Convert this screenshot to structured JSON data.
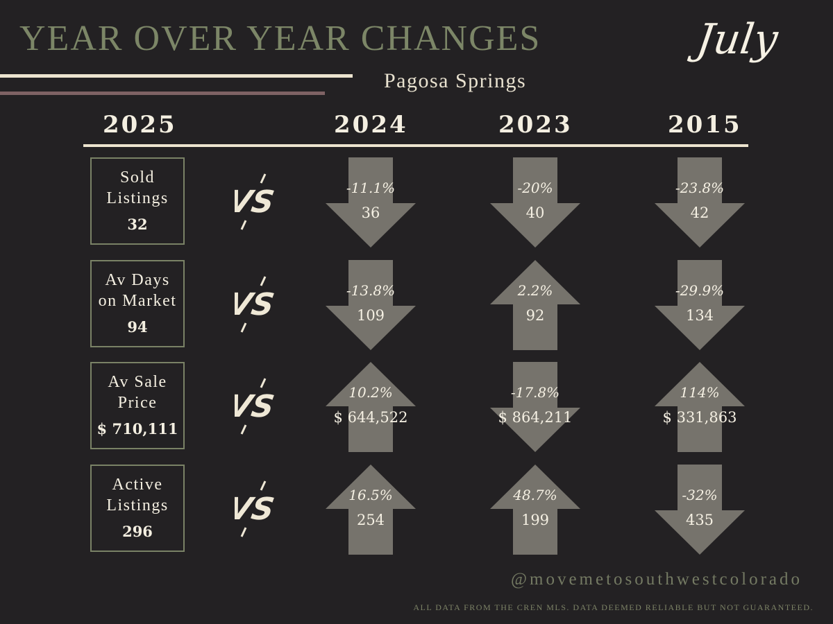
{
  "header": {
    "title": "YEAR OVER YEAR CHANGES",
    "month": "July",
    "location": "Pagosa Springs"
  },
  "years": {
    "current": "2025",
    "compare": [
      "2024",
      "2023",
      "2015"
    ]
  },
  "vs_icon": "vs-icon",
  "rows": [
    {
      "label": "Sold\nListings",
      "value": "32",
      "comparisons": [
        {
          "pct": "-11.1%",
          "value": "36",
          "direction": "down"
        },
        {
          "pct": "-20%",
          "value": "40",
          "direction": "down"
        },
        {
          "pct": "-23.8%",
          "value": "42",
          "direction": "down"
        }
      ]
    },
    {
      "label": "Av Days\non Market",
      "value": "94",
      "comparisons": [
        {
          "pct": "-13.8%",
          "value": "109",
          "direction": "down"
        },
        {
          "pct": "2.2%",
          "value": "92",
          "direction": "up"
        },
        {
          "pct": "-29.9%",
          "value": "134",
          "direction": "down"
        }
      ]
    },
    {
      "label": "Av Sale\nPrice",
      "value": "$ 710,111",
      "comparisons": [
        {
          "pct": "10.2%",
          "value": "$ 644,522",
          "direction": "up"
        },
        {
          "pct": "-17.8%",
          "value": "$ 864,211",
          "direction": "down"
        },
        {
          "pct": "114%",
          "value": "$ 331,863",
          "direction": "up"
        }
      ]
    },
    {
      "label": "Active\nListings",
      "value": "296",
      "comparisons": [
        {
          "pct": "16.5%",
          "value": "254",
          "direction": "up"
        },
        {
          "pct": "48.7%",
          "value": "199",
          "direction": "up"
        },
        {
          "pct": "-32%",
          "value": "435",
          "direction": "down"
        }
      ]
    }
  ],
  "footer": {
    "handle": "@movemetosouthwestcolorado",
    "disclaimer": "ALL DATA FROM THE CREN MLS. DATA DEEMED RELIABLE BUT NOT GUARANTEED."
  },
  "colors": {
    "background": "#232123",
    "title_green": "#7c8667",
    "cream": "#ece4cf",
    "mauve": "#7e6264",
    "arrow_gray": "#76736c"
  }
}
